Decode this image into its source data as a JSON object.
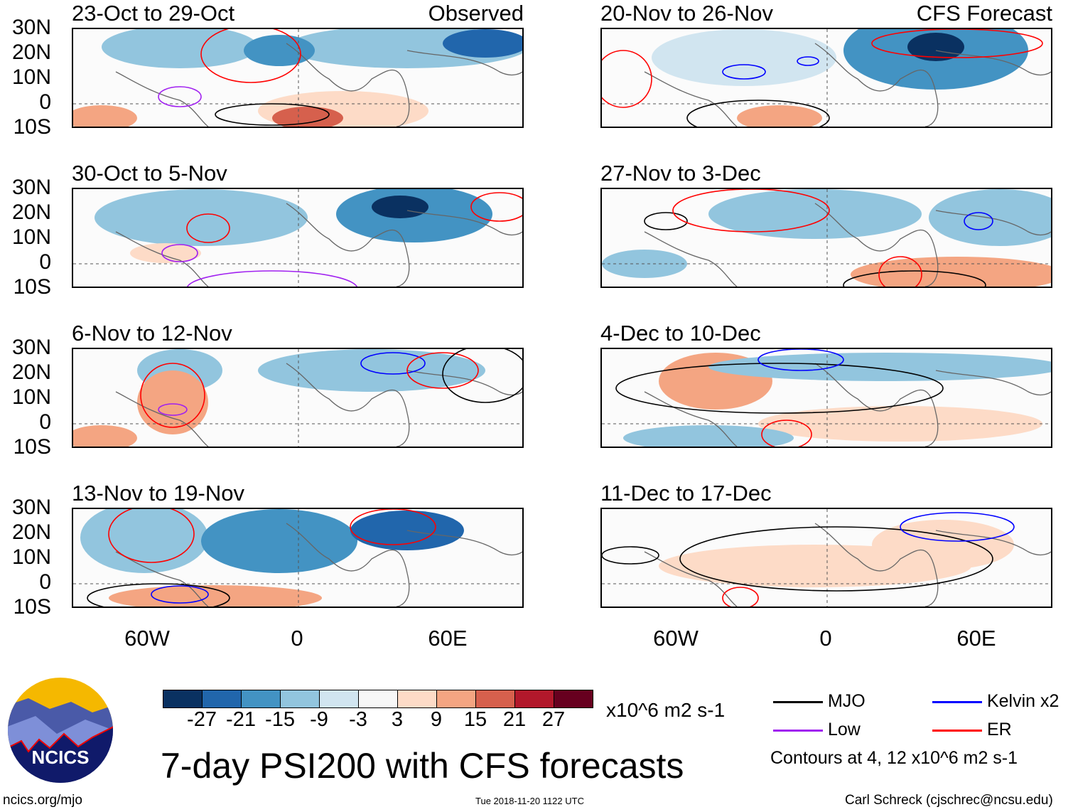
{
  "panels": {
    "left": [
      {
        "title": "23-Oct to 29-Oct",
        "tag": "Observed"
      },
      {
        "title": "30-Oct to 5-Nov"
      },
      {
        "title": "6-Nov to 12-Nov"
      },
      {
        "title": "13-Nov to 19-Nov"
      }
    ],
    "right": [
      {
        "title": "20-Nov to 26-Nov",
        "tag": "CFS Forecast"
      },
      {
        "title": "27-Nov to 3-Dec"
      },
      {
        "title": "4-Dec to 10-Dec"
      },
      {
        "title": "11-Dec to 17-Dec"
      }
    ]
  },
  "lat_labels": [
    "30N",
    "20N",
    "10N",
    "0",
    "10S"
  ],
  "lon_labels": [
    "60W",
    "0",
    "60E"
  ],
  "colorbar": {
    "colors": [
      "#0a3161",
      "#2166ac",
      "#4393c3",
      "#92c5de",
      "#d1e5f0",
      "#f7f7f7",
      "#fddbc7",
      "#f4a582",
      "#d6604d",
      "#b2182b",
      "#67001f"
    ],
    "labels": [
      "-27",
      "-21",
      "-15",
      "-9",
      "-3",
      "3",
      "9",
      "15",
      "21",
      "27"
    ],
    "units": "x10^6 m2 s-1"
  },
  "legend": {
    "items": [
      {
        "label": "MJO",
        "color": "#000000"
      },
      {
        "label": "Kelvin x2",
        "color": "#0000ff"
      },
      {
        "label": "Low",
        "color": "#a020f0"
      },
      {
        "label": "ER",
        "color": "#ff0000"
      }
    ],
    "note": "Contours at 4, 12 x10^6 m2 s-1"
  },
  "logo": "NCICS",
  "main_title": "7-day PSI200 with CFS forecasts",
  "footer": {
    "url": "ncics.org/mjo",
    "timestamp": "Tue 2018-11-20 1122 UTC",
    "author": "Carl Schreck (cjschrec@ncsu.edu)"
  }
}
